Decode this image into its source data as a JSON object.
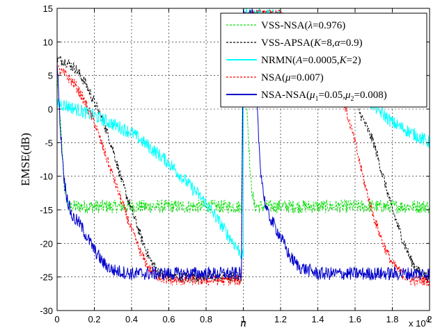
{
  "chart_data": {
    "type": "line",
    "title": "",
    "xlabel": "n",
    "ylabel": "EMSE(dB)",
    "x_multiplier_label": "x 10",
    "x_multiplier_exp": "4",
    "xlim": [
      0,
      2
    ],
    "ylim": [
      -30,
      15
    ],
    "xticks": [
      "0",
      "0.2",
      "0.4",
      "0.6",
      "0.8",
      "1",
      "1.2",
      "1.4",
      "1.6",
      "1.8",
      "2"
    ],
    "yticks": [
      "15",
      "10",
      "5",
      "0",
      "-5",
      "-10",
      "-15",
      "-20",
      "-25",
      "-30"
    ],
    "grid": true,
    "legend_position": "top-right",
    "series": [
      {
        "name": "VSS-NSA(λ=0.976)",
        "legend": {
          "pre": "VSS-NSA(",
          "i1": "λ",
          "t1": "=0.976)",
          "i2": "",
          "sub2": "",
          "t2": "",
          "i3": "",
          "sub3": "",
          "t3": ""
        },
        "color": "#00dd00",
        "dash": "3,2",
        "noise": 1.0,
        "points": [
          [
            0,
            5
          ],
          [
            0.02,
            -3
          ],
          [
            0.04,
            -12
          ],
          [
            0.06,
            -14.5
          ],
          [
            0.99,
            -14.5
          ],
          [
            1.0,
            11
          ],
          [
            1.02,
            0
          ],
          [
            1.04,
            -11
          ],
          [
            1.06,
            -14.5
          ],
          [
            2.0,
            -14.5
          ]
        ]
      },
      {
        "name": "VSS-APSA(K=8,α=0.9)",
        "legend": {
          "pre": "VSS-APSA(",
          "i1": "K",
          "t1": "=8,",
          "i2": "α",
          "sub2": "",
          "t2": "=0.9)",
          "i3": "",
          "sub3": "",
          "t3": ""
        },
        "color": "#000000",
        "dash": "3,2",
        "noise": 0.8,
        "points": [
          [
            0,
            7.5
          ],
          [
            0.05,
            7
          ],
          [
            0.1,
            6
          ],
          [
            0.15,
            4
          ],
          [
            0.2,
            1
          ],
          [
            0.25,
            -2
          ],
          [
            0.3,
            -6
          ],
          [
            0.35,
            -11
          ],
          [
            0.4,
            -15
          ],
          [
            0.45,
            -19
          ],
          [
            0.5,
            -22.5
          ],
          [
            0.55,
            -24.5
          ],
          [
            0.6,
            -25
          ],
          [
            0.99,
            -25
          ],
          [
            1.0,
            14
          ],
          [
            1.1,
            14
          ],
          [
            1.2,
            14
          ],
          [
            1.4,
            10
          ],
          [
            1.5,
            5
          ],
          [
            1.6,
            1
          ],
          [
            1.7,
            -5
          ],
          [
            1.75,
            -10
          ],
          [
            1.8,
            -15
          ],
          [
            1.85,
            -19
          ],
          [
            1.9,
            -22.5
          ],
          [
            1.95,
            -24.5
          ],
          [
            2.0,
            -25
          ]
        ]
      },
      {
        "name": "NRMN(A=0.0005,K=2)",
        "legend": {
          "pre": "NRMN(",
          "i1": "A",
          "t1": "=0.0005,",
          "i2": "K",
          "sub2": "",
          "t2": "=2)",
          "i3": "",
          "sub3": "",
          "t3": ""
        },
        "color": "#00ffff",
        "dash": "",
        "noise": 1.0,
        "points": [
          [
            0,
            1
          ],
          [
            0.2,
            -1
          ],
          [
            0.4,
            -3.5
          ],
          [
            0.6,
            -8
          ],
          [
            0.8,
            -14
          ],
          [
            0.9,
            -18
          ],
          [
            1.0,
            -22
          ],
          [
            1.0,
            14
          ],
          [
            1.2,
            14
          ],
          [
            1.4,
            11
          ],
          [
            1.6,
            3
          ],
          [
            1.8,
            -2
          ],
          [
            2.0,
            -5
          ]
        ]
      },
      {
        "name": "NSA(μ=0.007)",
        "legend": {
          "pre": "NSA(",
          "i1": "μ",
          "t1": "=0.007)",
          "i2": "",
          "sub2": "",
          "t2": "",
          "i3": "",
          "sub3": "",
          "t3": ""
        },
        "color": "#ff0000",
        "dash": "3,2",
        "noise": 0.8,
        "points": [
          [
            0,
            6
          ],
          [
            0.05,
            5
          ],
          [
            0.1,
            3.5
          ],
          [
            0.15,
            1
          ],
          [
            0.2,
            -2
          ],
          [
            0.25,
            -6
          ],
          [
            0.3,
            -10
          ],
          [
            0.35,
            -14
          ],
          [
            0.4,
            -18
          ],
          [
            0.45,
            -21.5
          ],
          [
            0.5,
            -24
          ],
          [
            0.55,
            -25
          ],
          [
            0.6,
            -25.5
          ],
          [
            0.99,
            -25.5
          ],
          [
            1.0,
            14
          ],
          [
            1.2,
            14
          ],
          [
            1.4,
            8
          ],
          [
            1.5,
            4
          ],
          [
            1.55,
            0
          ],
          [
            1.6,
            -5
          ],
          [
            1.65,
            -11
          ],
          [
            1.7,
            -16
          ],
          [
            1.75,
            -20
          ],
          [
            1.8,
            -23
          ],
          [
            1.85,
            -24.5
          ],
          [
            1.9,
            -25.5
          ],
          [
            2.0,
            -25.5
          ]
        ]
      },
      {
        "name": "NSA-NSA(μ1=0.05,μ2=0.008)",
        "legend": {
          "pre": "NSA-NSA(",
          "i1": "μ",
          "t1": "",
          "i2": "",
          "sub2": "1",
          "t2": "=0.05,",
          "i3": "μ",
          "sub3": "2",
          "t3": "=0.008)"
        },
        "color": "#0000cc",
        "dash": "",
        "noise": 1.0,
        "points": [
          [
            0,
            7
          ],
          [
            0.02,
            -4
          ],
          [
            0.04,
            -11
          ],
          [
            0.06,
            -14
          ],
          [
            0.08,
            -16
          ],
          [
            0.12,
            -17
          ],
          [
            0.16,
            -19
          ],
          [
            0.2,
            -21
          ],
          [
            0.25,
            -23
          ],
          [
            0.3,
            -24
          ],
          [
            0.4,
            -24.5
          ],
          [
            0.99,
            -24.5
          ],
          [
            1.0,
            14
          ],
          [
            1.05,
            14
          ],
          [
            1.07,
            2
          ],
          [
            1.09,
            -8
          ],
          [
            1.11,
            -13
          ],
          [
            1.13,
            -15.5
          ],
          [
            1.16,
            -17
          ],
          [
            1.2,
            -19
          ],
          [
            1.25,
            -22
          ],
          [
            1.3,
            -23.5
          ],
          [
            1.4,
            -24.5
          ],
          [
            2.0,
            -24.5
          ]
        ]
      }
    ]
  }
}
